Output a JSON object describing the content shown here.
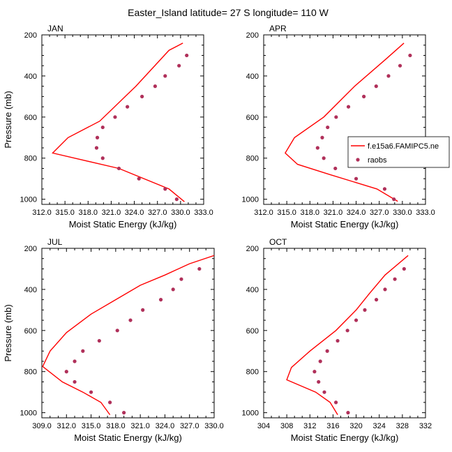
{
  "title": "Easter_Island  latitude= 27 S longitude= 110 W",
  "colors": {
    "model": "#ff0000",
    "obs": "#b0305a"
  },
  "legend": {
    "model": "f.e15a6.FAMIPC5.ne",
    "obs": "raobs"
  },
  "chart_data": [
    {
      "type": "line",
      "label": "JAN",
      "xlabel": "Moist Static Energy (kJ/kg)",
      "ylabel": "Pressure (mb)",
      "xlim": [
        312.0,
        333.0
      ],
      "ylim": [
        200,
        1025
      ],
      "y_reversed": true,
      "xticks": [
        312.0,
        315.0,
        318.0,
        321.0,
        324.0,
        327.0,
        330.0,
        333.0
      ],
      "xtick_labels": [
        "312.0",
        "315.0",
        "318.0",
        "321.0",
        "324.0",
        "327.0",
        "330.0",
        "333.0"
      ],
      "yticks": [
        200,
        400,
        600,
        800,
        1000
      ],
      "ytick_labels": [
        "200",
        "400",
        "600",
        "800",
        "1000"
      ],
      "legend_visible": false,
      "series": [
        {
          "kind": "line",
          "x": [
            330.3,
            328.5,
            324.2,
            319.5,
            315.4,
            313.4,
            322.0,
            328.5,
            330.5
          ],
          "y": [
            240,
            275,
            450,
            620,
            700,
            775,
            850,
            950,
            1012
          ]
        },
        {
          "kind": "points",
          "x": [
            330.8,
            329.8,
            328.0,
            326.7,
            325.0,
            323.1,
            321.5,
            319.9,
            319.2,
            319.1,
            319.9,
            322.0,
            324.6,
            328.0,
            329.5
          ],
          "y": [
            300,
            350,
            400,
            450,
            500,
            550,
            600,
            650,
            700,
            750,
            800,
            850,
            900,
            950,
            1000
          ]
        }
      ]
    },
    {
      "type": "line",
      "label": "APR",
      "xlabel": "Moist Static Energy (kJ/kg)",
      "ylabel": "",
      "xlim": [
        312.0,
        333.0
      ],
      "ylim": [
        200,
        1025
      ],
      "y_reversed": true,
      "xticks": [
        312.0,
        315.0,
        318.0,
        321.0,
        324.0,
        327.0,
        330.0,
        333.0
      ],
      "xtick_labels": [
        "312.0",
        "315.0",
        "318.0",
        "321.0",
        "324.0",
        "327.0",
        "330.0",
        "333.0"
      ],
      "yticks": [
        200,
        400,
        600,
        800,
        1000
      ],
      "ytick_labels": [
        "200",
        "400",
        "600",
        "800",
        "1000"
      ],
      "legend_visible": true,
      "series": [
        {
          "kind": "line",
          "x": [
            330.2,
            327.8,
            323.8,
            319.8,
            316.0,
            314.8,
            316.4,
            320.6,
            326.7,
            329.4
          ],
          "y": [
            240,
            320,
            450,
            600,
            700,
            775,
            830,
            880,
            950,
            1010
          ]
        },
        {
          "kind": "points",
          "x": [
            331.0,
            329.7,
            328.2,
            326.6,
            325.0,
            323.0,
            321.4,
            320.3,
            319.6,
            319.0,
            319.8,
            321.3,
            324.0,
            327.7,
            328.9
          ],
          "y": [
            300,
            350,
            400,
            450,
            500,
            550,
            600,
            650,
            700,
            750,
            800,
            850,
            900,
            950,
            1000
          ]
        }
      ]
    },
    {
      "type": "line",
      "label": "JUL",
      "xlabel": "Moist Static Energy (kJ/kg)",
      "ylabel": "Pressure (mb)",
      "xlim": [
        309.0,
        330.0
      ],
      "ylim": [
        200,
        1025
      ],
      "y_reversed": true,
      "xticks": [
        309.0,
        312.0,
        315.0,
        318.0,
        321.0,
        324.0,
        327.0,
        330.0
      ],
      "xtick_labels": [
        "309.0",
        "312.0",
        "315.0",
        "318.0",
        "321.0",
        "324.0",
        "327.0",
        "330.0"
      ],
      "yticks": [
        200,
        400,
        600,
        800,
        1000
      ],
      "ytick_labels": [
        "200",
        "400",
        "600",
        "800",
        "1000"
      ],
      "legend_visible": false,
      "series": [
        {
          "kind": "line",
          "x": [
            330.0,
            327.0,
            324.0,
            321.0,
            318.0,
            315.0,
            312.0,
            310.0,
            309.1,
            311.5,
            314.0,
            316.2,
            317.3
          ],
          "y": [
            235,
            275,
            330,
            380,
            450,
            520,
            610,
            700,
            775,
            850,
            900,
            950,
            1010
          ]
        },
        {
          "kind": "points",
          "x": [
            328.2,
            326.0,
            325.0,
            323.5,
            321.3,
            319.8,
            318.2,
            316.0,
            314.0,
            313.0,
            312.0,
            313.0,
            315.0,
            317.3,
            319.0
          ],
          "y": [
            300,
            350,
            400,
            450,
            500,
            550,
            600,
            650,
            700,
            750,
            800,
            850,
            900,
            950,
            1000
          ]
        }
      ]
    },
    {
      "type": "line",
      "label": "OCT",
      "xlabel": "Moist Static Energy (kJ/kg)",
      "ylabel": "",
      "xlim": [
        304,
        332
      ],
      "ylim": [
        200,
        1025
      ],
      "y_reversed": true,
      "xticks": [
        304,
        308,
        312,
        316,
        320,
        324,
        328,
        332
      ],
      "xtick_labels": [
        "304",
        "308",
        "312",
        "316",
        "320",
        "324",
        "328",
        "332"
      ],
      "yticks": [
        200,
        400,
        600,
        800,
        1000
      ],
      "ytick_labels": [
        "200",
        "400",
        "600",
        "800",
        "1000"
      ],
      "legend_visible": false,
      "series": [
        {
          "kind": "line",
          "x": [
            329.0,
            325.0,
            322.3,
            320.0,
            316.5,
            312.0,
            308.8,
            308.0,
            313.0,
            315.5,
            316.8
          ],
          "y": [
            235,
            330,
            420,
            500,
            600,
            700,
            780,
            840,
            900,
            950,
            1010
          ]
        },
        {
          "kind": "points",
          "x": [
            328.3,
            326.7,
            325.0,
            323.5,
            321.5,
            320.0,
            318.5,
            316.8,
            315.0,
            313.8,
            312.8,
            313.5,
            314.5,
            316.5,
            318.6
          ],
          "y": [
            300,
            350,
            400,
            450,
            500,
            550,
            600,
            650,
            700,
            750,
            800,
            850,
            900,
            950,
            1000
          ]
        }
      ]
    }
  ]
}
